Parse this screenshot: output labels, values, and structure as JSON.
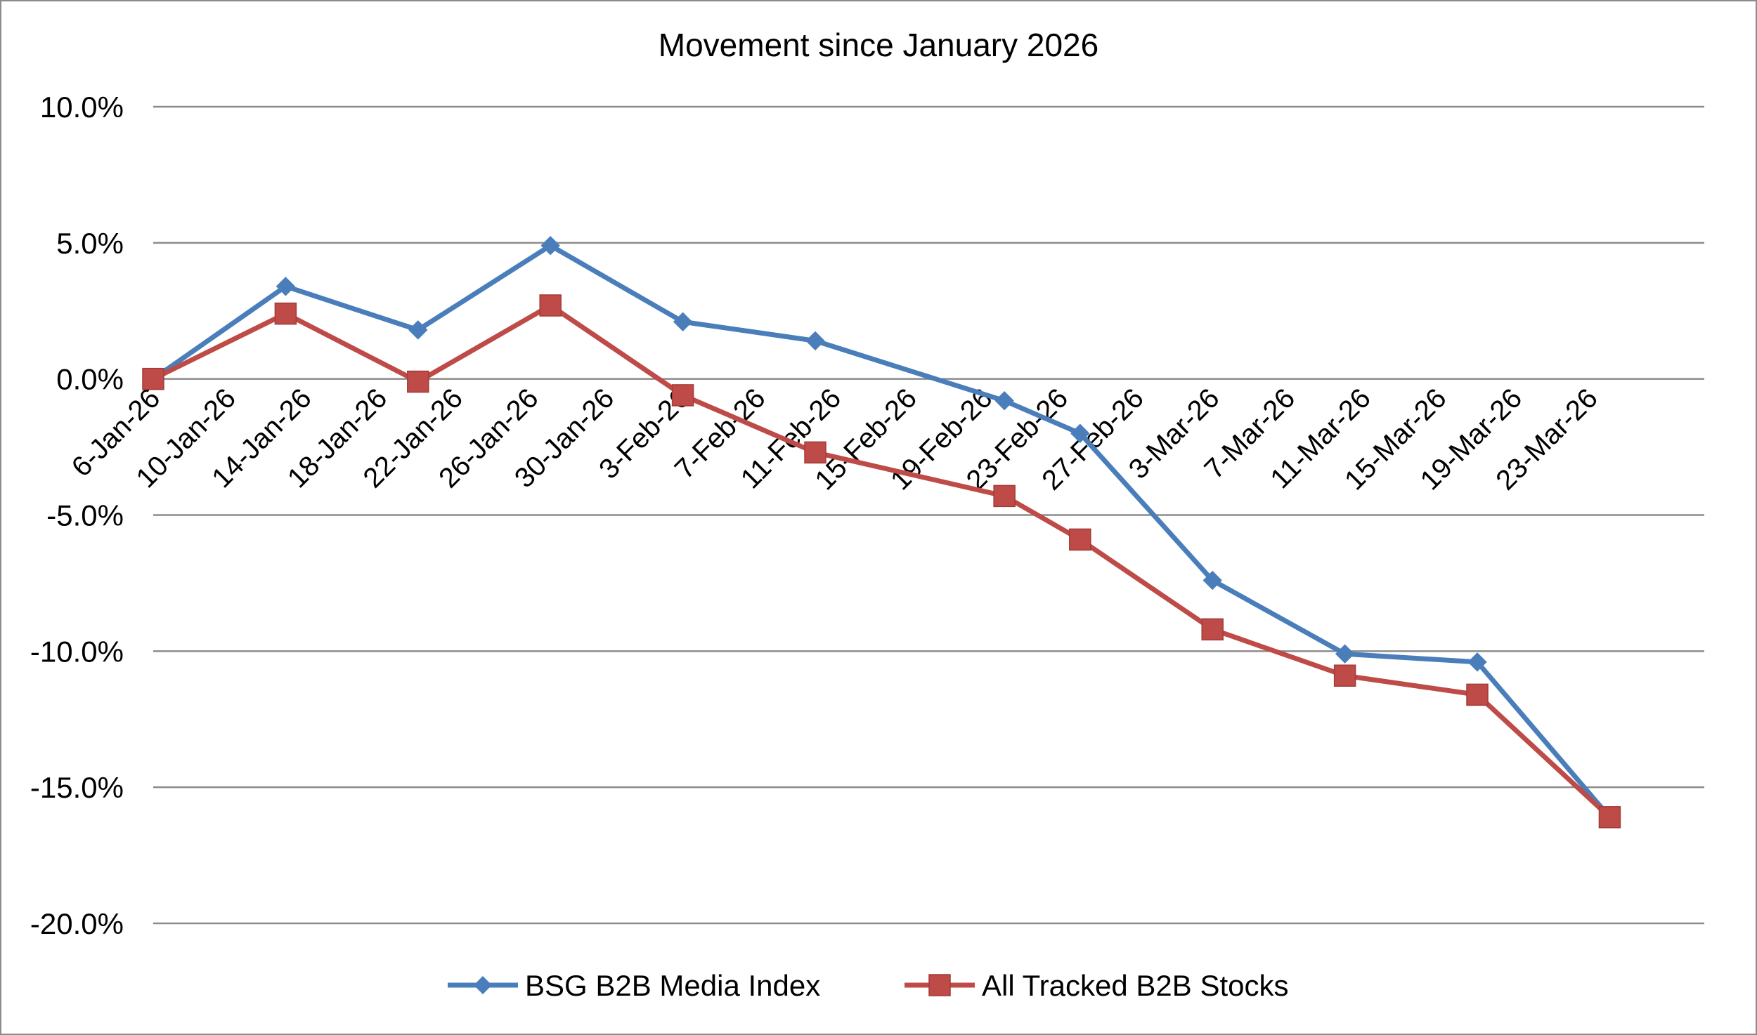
{
  "chart_data": {
    "type": "line",
    "title": "Movement since January 2026",
    "xlabel": "",
    "ylabel": "",
    "ylim": [
      -20,
      10
    ],
    "y_ticks": [
      {
        "value": 10,
        "label": "10.0%"
      },
      {
        "value": 5,
        "label": "5.0%"
      },
      {
        "value": 0,
        "label": "0.0%"
      },
      {
        "value": -5,
        "label": "-5.0%"
      },
      {
        "value": -10,
        "label": "-10.0%"
      },
      {
        "value": -15,
        "label": "-15.0%"
      },
      {
        "value": -20,
        "label": "-20.0%"
      }
    ],
    "x_tick_labels": [
      "6-Jan-26",
      "10-Jan-26",
      "14-Jan-26",
      "18-Jan-26",
      "22-Jan-26",
      "26-Jan-26",
      "30-Jan-26",
      "3-Feb-26",
      "7-Feb-26",
      "11-Feb-26",
      "15-Feb-26",
      "19-Feb-26",
      "23-Feb-26",
      "27-Feb-26",
      "3-Mar-26",
      "7-Mar-26",
      "11-Mar-26",
      "15-Mar-26",
      "19-Mar-26",
      "23-Mar-26"
    ],
    "x_range": [
      "2026-01-06",
      "2026-03-29"
    ],
    "grid": "horizontal",
    "legend_position": "bottom",
    "series": [
      {
        "name": "BSG B2B Media Index",
        "color": "#4a7ebb",
        "marker": "diamond",
        "points": [
          {
            "x": "2026-01-06",
            "y": 0.0
          },
          {
            "x": "2026-01-13",
            "y": 3.4
          },
          {
            "x": "2026-01-20",
            "y": 1.8
          },
          {
            "x": "2026-01-27",
            "y": 4.9
          },
          {
            "x": "2026-02-03",
            "y": 2.1
          },
          {
            "x": "2026-02-10",
            "y": 1.4
          },
          {
            "x": "2026-02-20",
            "y": -0.8
          },
          {
            "x": "2026-02-24",
            "y": -2.0
          },
          {
            "x": "2026-03-03",
            "y": -7.4
          },
          {
            "x": "2026-03-10",
            "y": -10.1
          },
          {
            "x": "2026-03-17",
            "y": -10.4
          },
          {
            "x": "2026-03-24",
            "y": -16.1
          }
        ]
      },
      {
        "name": "All Tracked B2B Stocks",
        "color": "#be4b48",
        "marker": "square",
        "points": [
          {
            "x": "2026-01-06",
            "y": 0.0
          },
          {
            "x": "2026-01-13",
            "y": 2.4
          },
          {
            "x": "2026-01-20",
            "y": -0.1
          },
          {
            "x": "2026-01-27",
            "y": 2.7
          },
          {
            "x": "2026-02-03",
            "y": -0.6
          },
          {
            "x": "2026-02-10",
            "y": -2.7
          },
          {
            "x": "2026-02-20",
            "y": -4.3
          },
          {
            "x": "2026-02-24",
            "y": -5.9
          },
          {
            "x": "2026-03-03",
            "y": -9.2
          },
          {
            "x": "2026-03-10",
            "y": -10.9
          },
          {
            "x": "2026-03-17",
            "y": -11.6
          },
          {
            "x": "2026-03-24",
            "y": -16.1
          }
        ]
      }
    ]
  }
}
